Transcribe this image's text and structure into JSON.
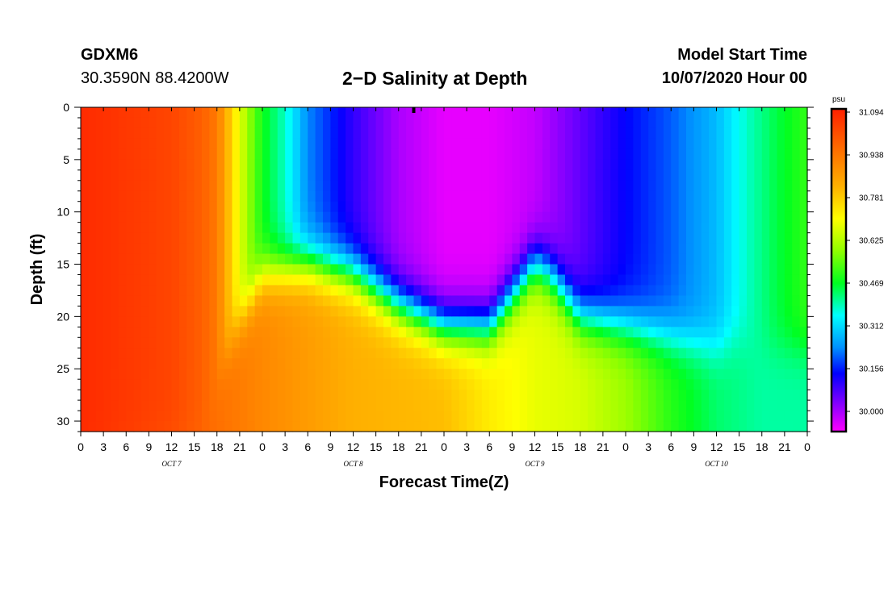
{
  "header": {
    "station": "GDXM6",
    "coords": "30.3590N 88.4200W",
    "title": "2−D Salinity at Depth",
    "start_label": "Model Start Time",
    "start_time": "10/07/2020 Hour 00"
  },
  "chart_data": {
    "type": "heatmap",
    "title": "2−D Salinity at Depth",
    "xlabel": "Forecast Time(Z)",
    "ylabel": "Depth (ft)",
    "x_tick_labels": [
      "0",
      "3",
      "6",
      "9",
      "12",
      "15",
      "18",
      "21",
      "0",
      "3",
      "6",
      "9",
      "12",
      "15",
      "18",
      "21",
      "0",
      "3",
      "6",
      "9",
      "12",
      "15",
      "18",
      "21",
      "0",
      "3",
      "6",
      "9",
      "12",
      "15",
      "18",
      "21",
      "0"
    ],
    "x_range_hours": [
      0,
      96
    ],
    "day_labels": [
      {
        "label": "OCT 7",
        "hour": 12
      },
      {
        "label": "OCT 8",
        "hour": 36
      },
      {
        "label": "OCT 9",
        "hour": 60
      },
      {
        "label": "OCT 10",
        "hour": 84
      }
    ],
    "y_ticks": [
      0,
      5,
      10,
      15,
      20,
      25,
      30
    ],
    "ylim": [
      0,
      31
    ],
    "colorbar": {
      "unit": "psu",
      "labels": [
        "31.094",
        "30.938",
        "30.781",
        "30.625",
        "30.469",
        "30.312",
        "30.156",
        "30.000"
      ],
      "range": [
        29.95,
        31.12
      ]
    },
    "marker_hour": 44,
    "surface_profile": [
      [
        0,
        31.1
      ],
      [
        12,
        31.05
      ],
      [
        16,
        31.0
      ],
      [
        18,
        30.95
      ],
      [
        20,
        30.78
      ],
      [
        22,
        30.62
      ],
      [
        24,
        30.5
      ],
      [
        27,
        30.4
      ],
      [
        30,
        30.25
      ],
      [
        36,
        30.12
      ],
      [
        42,
        30.02
      ],
      [
        48,
        29.97
      ],
      [
        54,
        29.97
      ],
      [
        60,
        30.0
      ],
      [
        66,
        30.08
      ],
      [
        72,
        30.16
      ],
      [
        78,
        30.22
      ],
      [
        84,
        30.3
      ],
      [
        88,
        30.4
      ],
      [
        92,
        30.47
      ],
      [
        96,
        30.53
      ]
    ],
    "bottom_profile": [
      [
        0,
        31.1
      ],
      [
        12,
        31.02
      ],
      [
        24,
        30.92
      ],
      [
        36,
        30.84
      ],
      [
        48,
        30.82
      ],
      [
        54,
        30.75
      ],
      [
        60,
        30.7
      ],
      [
        66,
        30.68
      ],
      [
        72,
        30.62
      ],
      [
        78,
        30.52
      ],
      [
        84,
        30.45
      ],
      [
        90,
        30.42
      ],
      [
        96,
        30.42
      ]
    ],
    "halocline_profile": [
      [
        0,
        31
      ],
      [
        16,
        31
      ],
      [
        20,
        22
      ],
      [
        24,
        16
      ],
      [
        30,
        15
      ],
      [
        36,
        16
      ],
      [
        42,
        19
      ],
      [
        48,
        21
      ],
      [
        54,
        21
      ],
      [
        58,
        17
      ],
      [
        60,
        15
      ],
      [
        62,
        16
      ],
      [
        66,
        20
      ],
      [
        72,
        21
      ],
      [
        78,
        22
      ],
      [
        84,
        23
      ],
      [
        87,
        22
      ],
      [
        90,
        23
      ],
      [
        96,
        23
      ]
    ]
  }
}
